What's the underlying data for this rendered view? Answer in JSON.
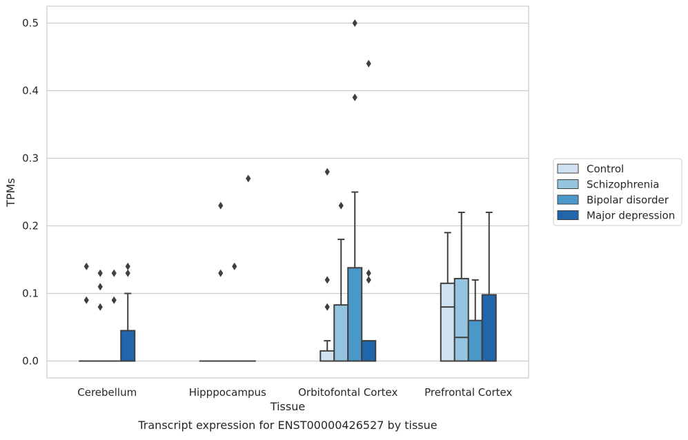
{
  "chart_data": {
    "type": "box",
    "caption": "Transcript expression for ENST00000426527 by tissue",
    "xlabel": "Tissue",
    "ylabel": "TPMs",
    "ylim": [
      -0.025,
      0.525
    ],
    "yticks": [
      0.0,
      0.1,
      0.2,
      0.3,
      0.4,
      0.5
    ],
    "ytick_labels": [
      "0.0",
      "0.1",
      "0.2",
      "0.3",
      "0.4",
      "0.5"
    ],
    "grid": "horizontal",
    "legend_position": "right",
    "categories": [
      "Cerebellum",
      "Hipppocampus",
      "Orbitofontal Cortex",
      "Prefrontal Cortex"
    ],
    "series": [
      {
        "name": "Control",
        "color": "#d0e1f2",
        "boxes": [
          {
            "min": 0.0,
            "q1": 0.0,
            "median": 0.0,
            "q3": 0.0,
            "max": 0.0,
            "outliers": [
              0.14,
              0.09
            ]
          },
          {
            "min": 0.0,
            "q1": 0.0,
            "median": 0.0,
            "q3": 0.0,
            "max": 0.0,
            "outliers": []
          },
          {
            "min": 0.0,
            "q1": 0.0,
            "median": 0.0,
            "q3": 0.015,
            "max": 0.03,
            "outliers": [
              0.28,
              0.12,
              0.08
            ]
          },
          {
            "min": 0.0,
            "q1": 0.0,
            "median": 0.08,
            "q3": 0.115,
            "max": 0.19,
            "outliers": []
          }
        ]
      },
      {
        "name": "Schizophrenia",
        "color": "#94c4df",
        "boxes": [
          {
            "min": 0.0,
            "q1": 0.0,
            "median": 0.0,
            "q3": 0.0,
            "max": 0.0,
            "outliers": [
              0.13,
              0.11,
              0.08
            ]
          },
          {
            "min": 0.0,
            "q1": 0.0,
            "median": 0.0,
            "q3": 0.0,
            "max": 0.0,
            "outliers": [
              0.23,
              0.13
            ]
          },
          {
            "min": 0.0,
            "q1": 0.0,
            "median": 0.0,
            "q3": 0.083,
            "max": 0.18,
            "outliers": [
              0.23
            ]
          },
          {
            "min": 0.0,
            "q1": 0.0,
            "median": 0.035,
            "q3": 0.122,
            "max": 0.22,
            "outliers": []
          }
        ]
      },
      {
        "name": "Bipolar disorder",
        "color": "#4a98c9",
        "boxes": [
          {
            "min": 0.0,
            "q1": 0.0,
            "median": 0.0,
            "q3": 0.0,
            "max": 0.0,
            "outliers": [
              0.13,
              0.09
            ]
          },
          {
            "min": 0.0,
            "q1": 0.0,
            "median": 0.0,
            "q3": 0.0,
            "max": 0.0,
            "outliers": [
              0.14
            ]
          },
          {
            "min": 0.0,
            "q1": 0.0,
            "median": 0.0,
            "q3": 0.138,
            "max": 0.25,
            "outliers": [
              0.5,
              0.39
            ]
          },
          {
            "min": 0.0,
            "q1": 0.0,
            "median": 0.0,
            "q3": 0.06,
            "max": 0.12,
            "outliers": []
          }
        ]
      },
      {
        "name": "Major depression",
        "color": "#2166ac",
        "boxes": [
          {
            "min": 0.0,
            "q1": 0.0,
            "median": 0.0,
            "q3": 0.045,
            "max": 0.1,
            "outliers": [
              0.14,
              0.13
            ]
          },
          {
            "min": 0.0,
            "q1": 0.0,
            "median": 0.0,
            "q3": 0.0,
            "max": 0.0,
            "outliers": [
              0.27
            ]
          },
          {
            "min": 0.0,
            "q1": 0.0,
            "median": 0.0,
            "q3": 0.03,
            "max": 0.03,
            "outliers": [
              0.44,
              0.13,
              0.12
            ]
          },
          {
            "min": 0.0,
            "q1": 0.0,
            "median": 0.0,
            "q3": 0.098,
            "max": 0.22,
            "outliers": []
          }
        ]
      }
    ]
  }
}
